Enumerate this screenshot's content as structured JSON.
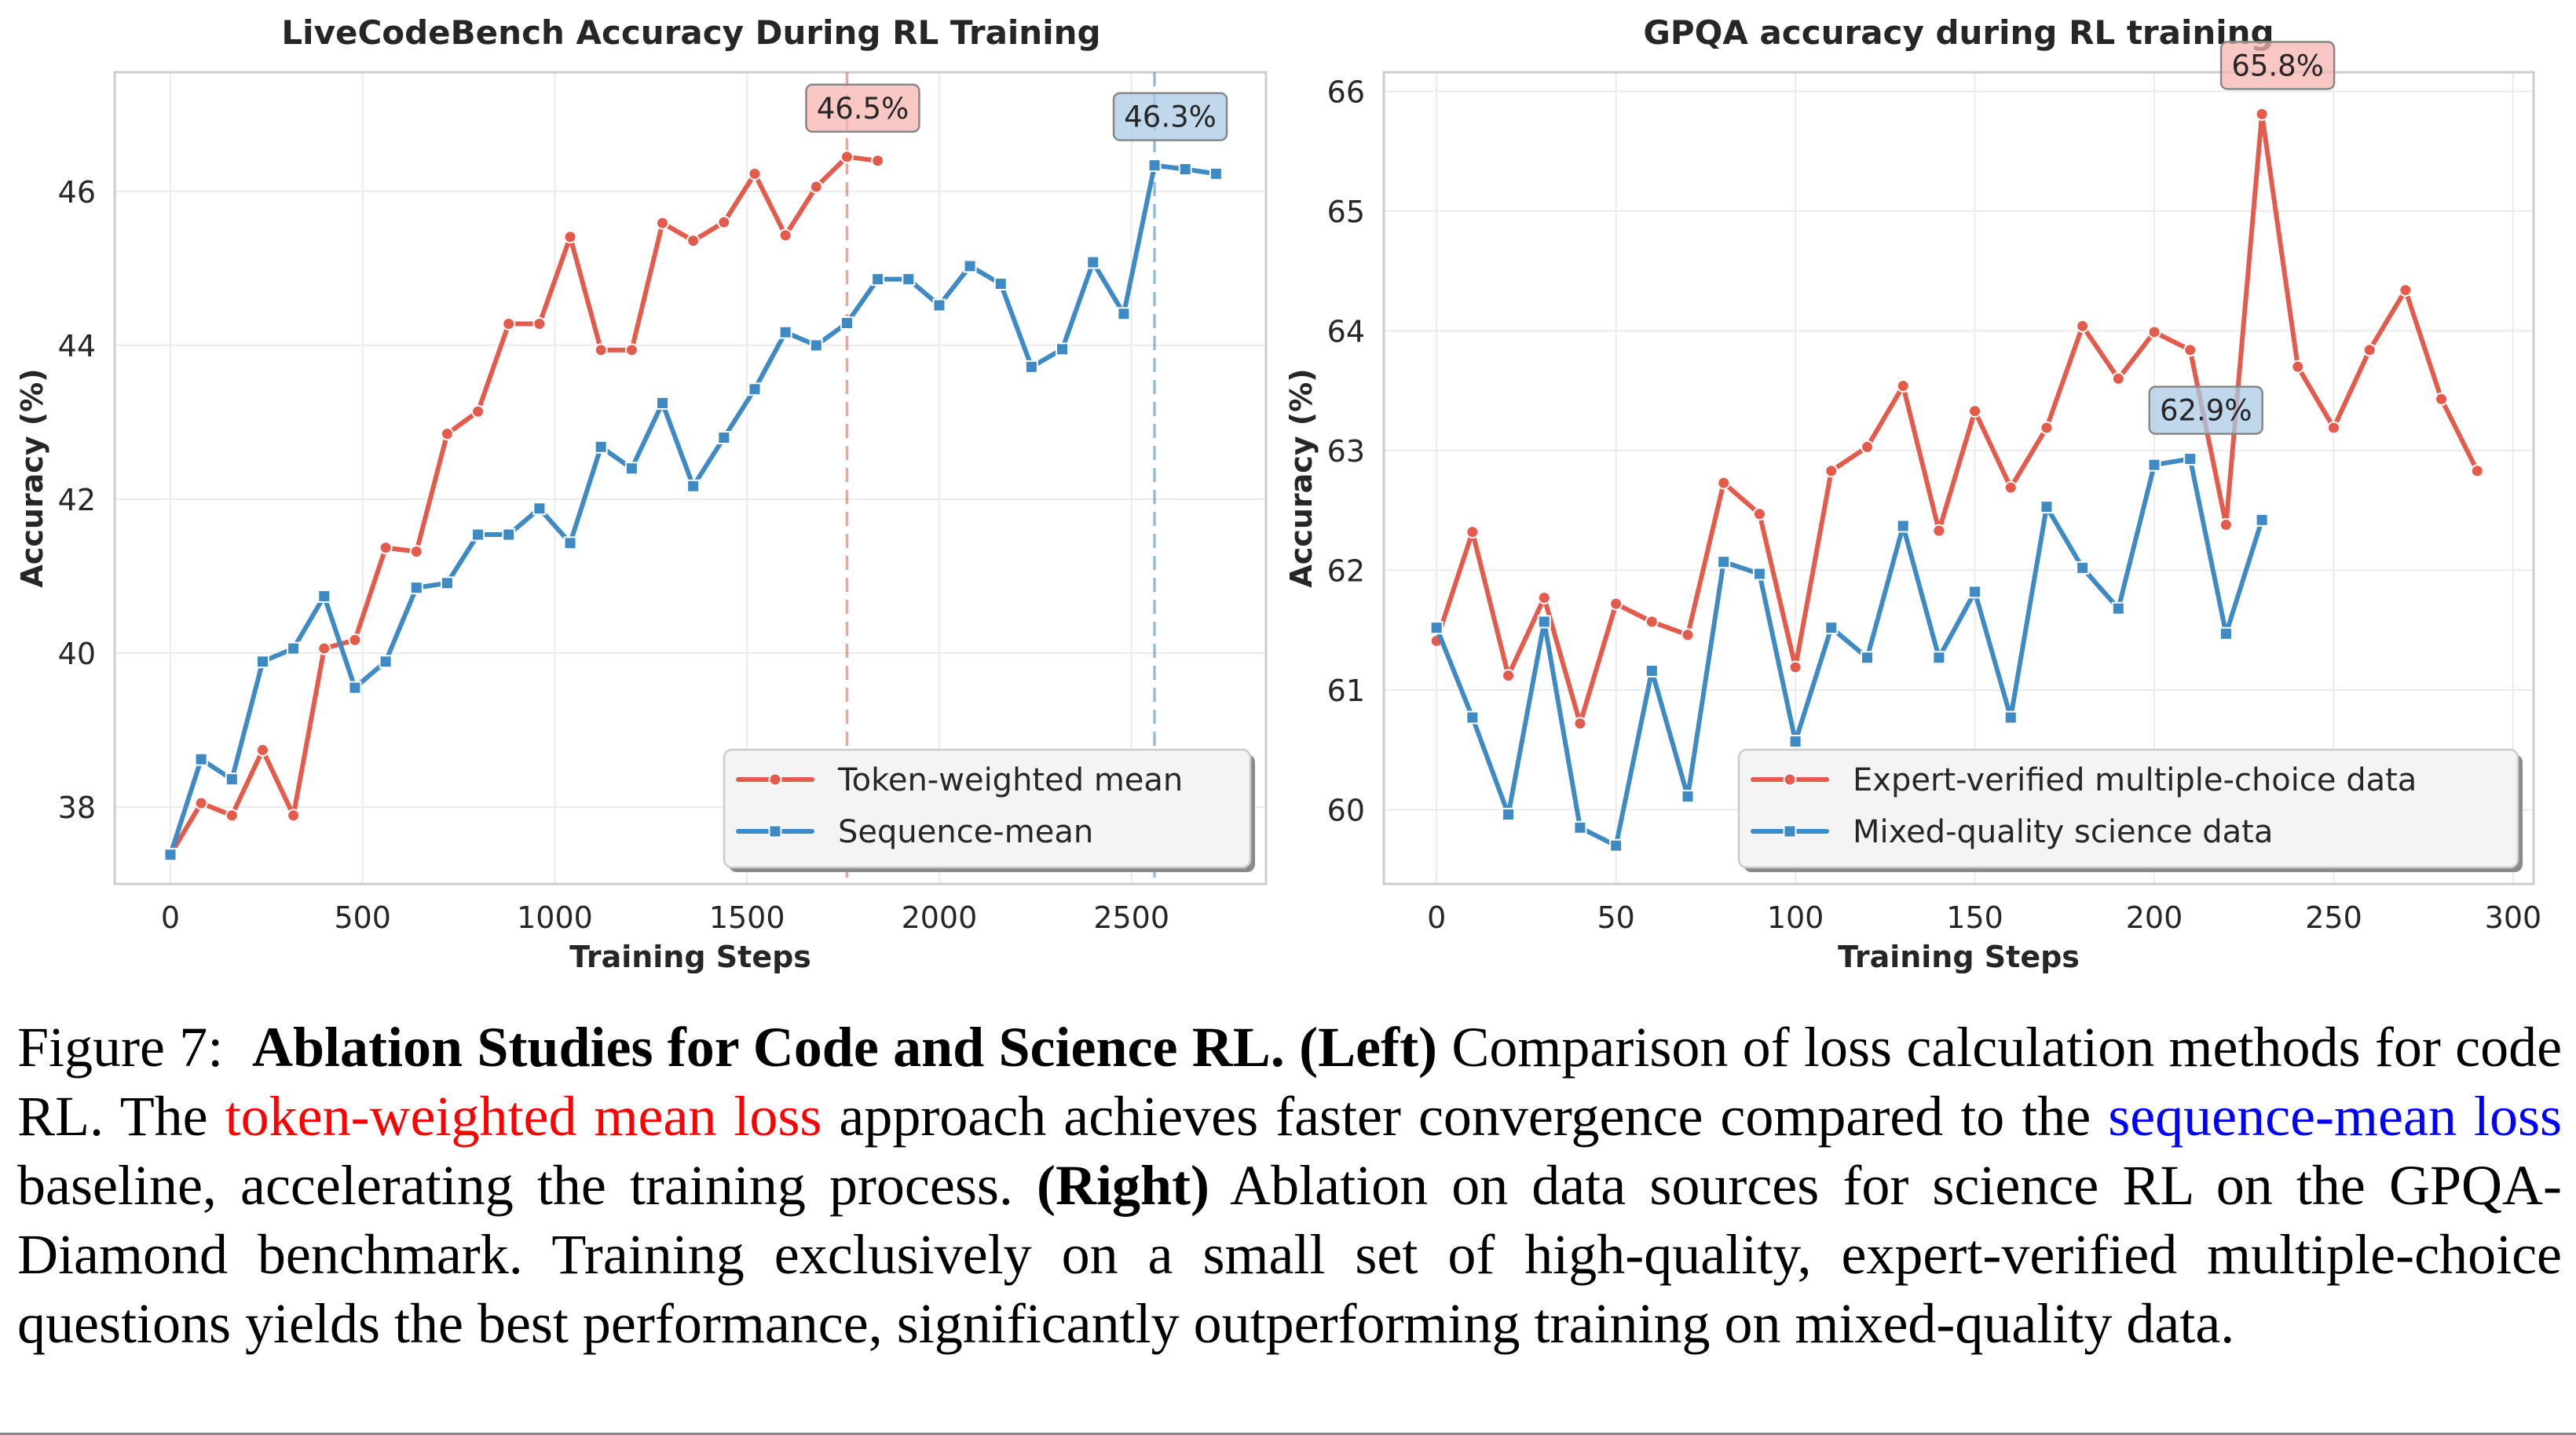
{
  "chart_data": [
    {
      "type": "line",
      "title": "LiveCodeBench Accuracy During RL Training",
      "xlabel": "Training Steps",
      "ylabel": "Accuracy (%)",
      "xlim": [
        -145,
        2850
      ],
      "ylim": [
        37.0,
        47.55
      ],
      "xticks": [
        0,
        500,
        1000,
        1500,
        2000,
        2500
      ],
      "yticks": [
        38,
        40,
        42,
        44,
        46
      ],
      "grid": true,
      "legend": "lower-right",
      "series": [
        {
          "name": "Token-weighted mean",
          "color": "#e45a4b",
          "marker": "circle",
          "x": [
            0,
            80,
            160,
            240,
            320,
            400,
            480,
            560,
            640,
            720,
            800,
            880,
            960,
            1040,
            1120,
            1200,
            1280,
            1360,
            1440,
            1520,
            1600,
            1680,
            1760,
            1840
          ],
          "y": [
            37.38,
            38.05,
            37.89,
            38.74,
            37.89,
            40.06,
            40.17,
            41.37,
            41.32,
            42.85,
            43.14,
            44.28,
            44.28,
            45.41,
            43.94,
            43.94,
            45.59,
            45.36,
            45.6,
            46.23,
            45.43,
            46.06,
            46.45,
            46.4
          ]
        },
        {
          "name": "Sequence-mean",
          "color": "#3d8ac4",
          "marker": "square",
          "x": [
            0,
            80,
            160,
            240,
            320,
            400,
            480,
            560,
            640,
            720,
            800,
            880,
            960,
            1040,
            1120,
            1200,
            1280,
            1360,
            1440,
            1520,
            1600,
            1680,
            1760,
            1840,
            1920,
            2000,
            2080,
            2160,
            2240,
            2320,
            2400,
            2480,
            2560,
            2640,
            2720
          ],
          "y": [
            37.38,
            38.62,
            38.36,
            39.89,
            40.06,
            40.74,
            39.55,
            39.89,
            40.85,
            40.91,
            41.54,
            41.54,
            41.88,
            41.43,
            42.68,
            42.4,
            43.25,
            42.17,
            42.8,
            43.43,
            44.17,
            44.0,
            44.29,
            44.86,
            44.86,
            44.52,
            45.03,
            44.8,
            43.72,
            43.95,
            45.08,
            44.41,
            46.34,
            46.29,
            46.23
          ]
        }
      ],
      "annotations": [
        {
          "text": "46.5%",
          "series": 0,
          "x": 1760,
          "y": 46.45,
          "vline": 1760
        },
        {
          "text": "46.3%",
          "series": 1,
          "x": 2560,
          "y": 46.34,
          "vline": 2560
        }
      ]
    },
    {
      "type": "line",
      "title": "GPQA accuracy during RL training",
      "xlabel": "Training Steps",
      "ylabel": "Accuracy (%)",
      "xlim": [
        -14.7,
        305.7
      ],
      "ylim": [
        59.38,
        66.16
      ],
      "xticks": [
        0,
        50,
        100,
        150,
        200,
        250,
        300
      ],
      "yticks": [
        60,
        61,
        62,
        63,
        64,
        65,
        66
      ],
      "grid": true,
      "legend": "lower-right",
      "series": [
        {
          "name": "Expert-verified multiple-choice data",
          "color": "#e45a4b",
          "marker": "circle",
          "x": [
            0,
            10,
            20,
            30,
            40,
            50,
            60,
            70,
            80,
            90,
            100,
            110,
            120,
            130,
            140,
            150,
            160,
            170,
            180,
            190,
            200,
            210,
            220,
            230,
            240,
            250,
            260,
            270,
            280,
            290
          ],
          "y": [
            61.41,
            62.32,
            61.12,
            61.77,
            60.72,
            61.72,
            61.57,
            61.46,
            62.73,
            62.47,
            61.19,
            62.83,
            63.03,
            63.54,
            62.33,
            63.33,
            62.69,
            63.19,
            64.04,
            63.6,
            63.99,
            63.84,
            62.38,
            65.81,
            63.7,
            63.19,
            63.84,
            64.34,
            63.43,
            62.83
          ]
        },
        {
          "name": "Mixed-quality science data",
          "color": "#3d8ac4",
          "marker": "square",
          "x": [
            0,
            10,
            20,
            30,
            40,
            50,
            60,
            70,
            80,
            90,
            100,
            110,
            120,
            130,
            140,
            150,
            160,
            170,
            180,
            190,
            200,
            210,
            220,
            230
          ],
          "y": [
            61.52,
            60.77,
            59.96,
            61.57,
            59.85,
            59.7,
            61.16,
            60.11,
            62.07,
            61.97,
            60.57,
            61.52,
            61.27,
            62.37,
            61.27,
            61.82,
            60.77,
            62.53,
            62.02,
            61.68,
            62.88,
            62.93,
            61.47,
            62.42
          ]
        }
      ],
      "annotations": [
        {
          "text": "65.8%",
          "series": 0,
          "x": 230,
          "y": 65.81,
          "vline": null
        },
        {
          "text": "62.9%",
          "series": 1,
          "x": 210,
          "y": 62.93,
          "vline": null
        }
      ]
    }
  ],
  "caption": {
    "figure_label": "Figure 7:",
    "bold_title": "Ablation Studies for Code and Science RL.",
    "left_label": "(Left)",
    "text_1": " Comparison of loss calculation methods for code RL. The ",
    "red_phrase": "token-weighted mean loss",
    "text_2": " approach achieves faster convergence compared to the ",
    "blue_phrase": "sequence-mean loss",
    "text_3": " baseline, accelerating the training process.  ",
    "right_label": "(Right)",
    "text_4": " Ablation on data sources for science RL on the GPQA-Diamond benchmark. Training exclusively on a small set of high-quality, expert-verified multiple-choice questions yields the best performance, significantly outperforming training on mixed-quality data.",
    "red_color": "#ff0000",
    "blue_color": "#0000ff"
  }
}
